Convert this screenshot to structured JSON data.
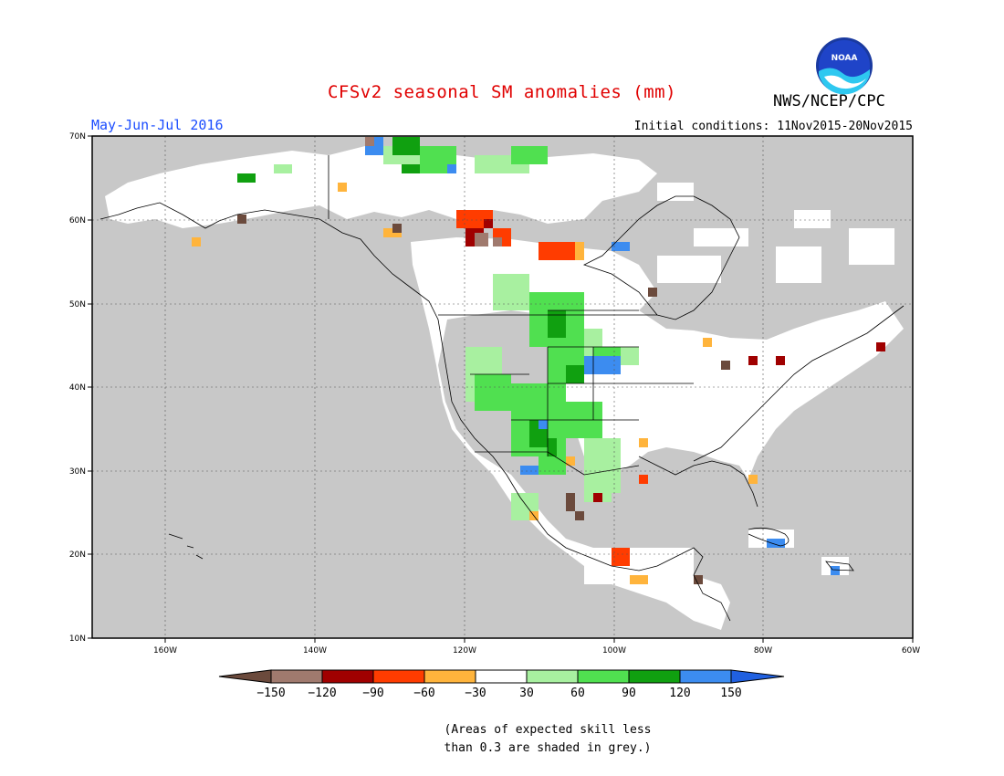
{
  "title": "CFSv2 seasonal SM anomalies (mm)",
  "season": "May-Jun-Jul 2016",
  "initial_conditions": "Initial conditions: 11Nov2015-20Nov2015",
  "agency": "NWS/NCEP/CPC",
  "logo_text": "NOAA",
  "map": {
    "lat_labels": [
      "70N",
      "60N",
      "50N",
      "40N",
      "30N",
      "20N",
      "10N"
    ],
    "lon_labels": [
      "160W",
      "140W",
      "120W",
      "100W",
      "80W",
      "60W"
    ],
    "colors": {
      "skill_grey": "#c8c8c8",
      "land_white": "#ffffff",
      "dry_extreme": "#6b4a3c",
      "dry_strong": "#a07a6e",
      "dry_120": "#a00000",
      "dry_90": "#ff3c00",
      "dry_60": "#ffb43c",
      "wet_30": "#a8f0a0",
      "wet_60": "#50e050",
      "wet_90": "#10a010",
      "wet_120": "#3c8cf0"
    }
  },
  "legend": {
    "labels": [
      "-150",
      "-120",
      "-90",
      "-60",
      "-30",
      "30",
      "60",
      "90",
      "120",
      "150"
    ],
    "colors": [
      "#6b4a3c",
      "#a07a6e",
      "#a00000",
      "#ff3c00",
      "#ffb43c",
      "#ffffff",
      "#a8f0a0",
      "#50e050",
      "#10a010",
      "#3c8cf0",
      "#2060e0"
    ]
  },
  "note_line1": "(Areas of expected skill less",
  "note_line2": "than 0.3 are shaded in grey.)"
}
